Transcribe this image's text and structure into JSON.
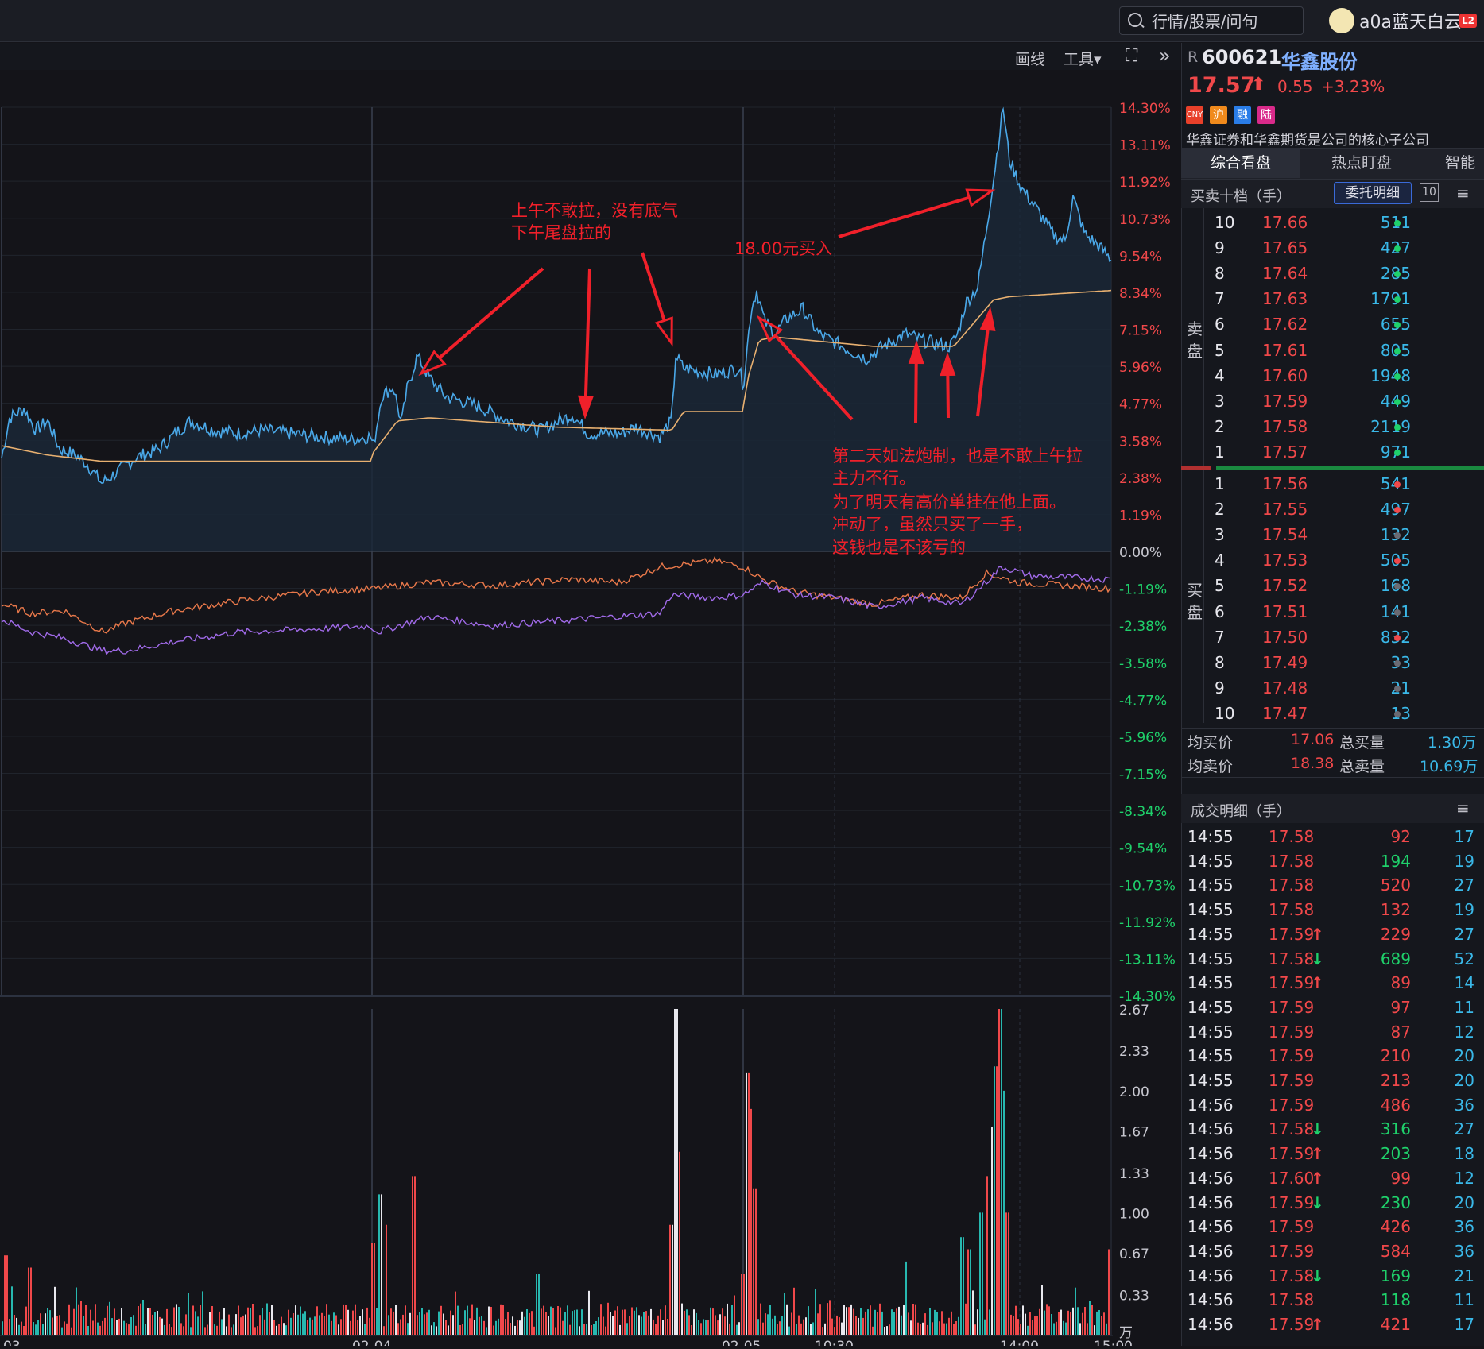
{
  "search": {
    "placeholder": "行情/股票/问句"
  },
  "user": {
    "name": "a0a蓝天白云",
    "badge": "L2"
  },
  "toolbar": {
    "draw": "画线",
    "tools": "工具▾",
    "fullscreen": "⛶",
    "more": "»"
  },
  "stock": {
    "prefix": "R",
    "code": "600621",
    "name": "华鑫股份",
    "price": "17.57",
    "change": "0.55",
    "pct": "+3.23%",
    "tags": [
      "CNY",
      "沪",
      "融",
      "陆"
    ],
    "tag_colors": [
      "#e8402a",
      "#f08a1c",
      "#2a7de8",
      "#d92a8a"
    ],
    "desc": "华鑫证券和华鑫期货是公司的核心子公司"
  },
  "tabs": [
    "综合看盘",
    "热点盯盘",
    "智能"
  ],
  "orderbook": {
    "title": "买卖十档（手）",
    "detail_btn": "委托明细",
    "count": "10",
    "sell_label": [
      "卖",
      "盘"
    ],
    "buy_label": [
      "买",
      "盘"
    ],
    "asks": [
      [
        "10",
        "17.66",
        "511",
        "g"
      ],
      [
        "9",
        "17.65",
        "427",
        "g"
      ],
      [
        "8",
        "17.64",
        "285",
        "g"
      ],
      [
        "7",
        "17.63",
        "1791",
        "g"
      ],
      [
        "6",
        "17.62",
        "655",
        "g"
      ],
      [
        "5",
        "17.61",
        "805",
        "g"
      ],
      [
        "4",
        "17.60",
        "1948",
        "g"
      ],
      [
        "3",
        "17.59",
        "449",
        "g"
      ],
      [
        "2",
        "17.58",
        "2119",
        "g"
      ],
      [
        "1",
        "17.57",
        "971",
        "g"
      ]
    ],
    "bids": [
      [
        "1",
        "17.56",
        "541",
        "r"
      ],
      [
        "2",
        "17.55",
        "497",
        "r"
      ],
      [
        "3",
        "17.54",
        "132",
        "n"
      ],
      [
        "4",
        "17.53",
        "505",
        "r"
      ],
      [
        "5",
        "17.52",
        "168",
        "n"
      ],
      [
        "6",
        "17.51",
        "141",
        "n"
      ],
      [
        "7",
        "17.50",
        "832",
        "r"
      ],
      [
        "8",
        "17.49",
        "33",
        "n"
      ],
      [
        "9",
        "17.48",
        "21",
        "n"
      ],
      [
        "10",
        "17.47",
        "13",
        "n"
      ]
    ],
    "avg_buy_label": "均买价",
    "avg_buy": "17.06",
    "total_buy_label": "总买量",
    "total_buy": "1.30万",
    "avg_sell_label": "均卖价",
    "avg_sell": "18.38",
    "total_sell_label": "总卖量",
    "total_sell": "10.69万"
  },
  "trades": {
    "title": "成交明细（手）",
    "rows": [
      [
        "14:55",
        "17.58",
        "",
        "92",
        "r",
        "17"
      ],
      [
        "14:55",
        "17.58",
        "",
        "194",
        "g",
        "19"
      ],
      [
        "14:55",
        "17.58",
        "",
        "520",
        "r",
        "27"
      ],
      [
        "14:55",
        "17.58",
        "",
        "132",
        "r",
        "19"
      ],
      [
        "14:55",
        "17.59",
        "↑",
        "229",
        "r",
        "27"
      ],
      [
        "14:55",
        "17.58",
        "↓",
        "689",
        "g",
        "52"
      ],
      [
        "14:55",
        "17.59",
        "↑",
        "89",
        "r",
        "14"
      ],
      [
        "14:55",
        "17.59",
        "",
        "97",
        "r",
        "11"
      ],
      [
        "14:55",
        "17.59",
        "",
        "87",
        "r",
        "12"
      ],
      [
        "14:55",
        "17.59",
        "",
        "210",
        "r",
        "20"
      ],
      [
        "14:55",
        "17.59",
        "",
        "213",
        "r",
        "20"
      ],
      [
        "14:56",
        "17.59",
        "",
        "486",
        "r",
        "36"
      ],
      [
        "14:56",
        "17.58",
        "↓",
        "316",
        "g",
        "27"
      ],
      [
        "14:56",
        "17.59",
        "↑",
        "203",
        "g",
        "18"
      ],
      [
        "14:56",
        "17.60",
        "↑",
        "99",
        "r",
        "12"
      ],
      [
        "14:56",
        "17.59",
        "↓",
        "230",
        "g",
        "20"
      ],
      [
        "14:56",
        "17.59",
        "",
        "426",
        "r",
        "36"
      ],
      [
        "14:56",
        "17.59",
        "",
        "584",
        "r",
        "36"
      ],
      [
        "14:56",
        "17.58",
        "↓",
        "169",
        "g",
        "21"
      ],
      [
        "14:56",
        "17.58",
        "",
        "118",
        "g",
        "11"
      ],
      [
        "14:56",
        "17.59",
        "↑",
        "421",
        "r",
        "17"
      ]
    ]
  },
  "chart": {
    "pct_axis": [
      "14.30%",
      "13.11%",
      "11.92%",
      "10.73%",
      "9.54%",
      "8.34%",
      "7.15%",
      "5.96%",
      "4.77%",
      "3.58%",
      "2.38%",
      "1.19%",
      "0.00%",
      "-1.19%",
      "-2.38%",
      "-3.58%",
      "-4.77%",
      "-5.96%",
      "-7.15%",
      "-8.34%",
      "-9.54%",
      "-10.73%",
      "-11.92%",
      "-13.11%",
      "-14.30%"
    ],
    "vol_axis": [
      "2.67",
      "2.33",
      "2.00",
      "1.67",
      "1.33",
      "1.00",
      "0.67",
      "0.33"
    ],
    "vol_unit": "万",
    "x_labels": [
      "03",
      "02-04",
      "02-05",
      "10:30",
      "14:00",
      "15:00"
    ],
    "annotations": [
      "上午不敢拉，没有底气",
      "下午尾盘拉的",
      "18.00元买入",
      "第二天如法炮制，也是不敢上午拉",
      "主力不行。",
      "为了明天有高价单挂在他上面。",
      "冲动了，虽然只买了一手，",
      "这钱也是不该亏的"
    ]
  }
}
